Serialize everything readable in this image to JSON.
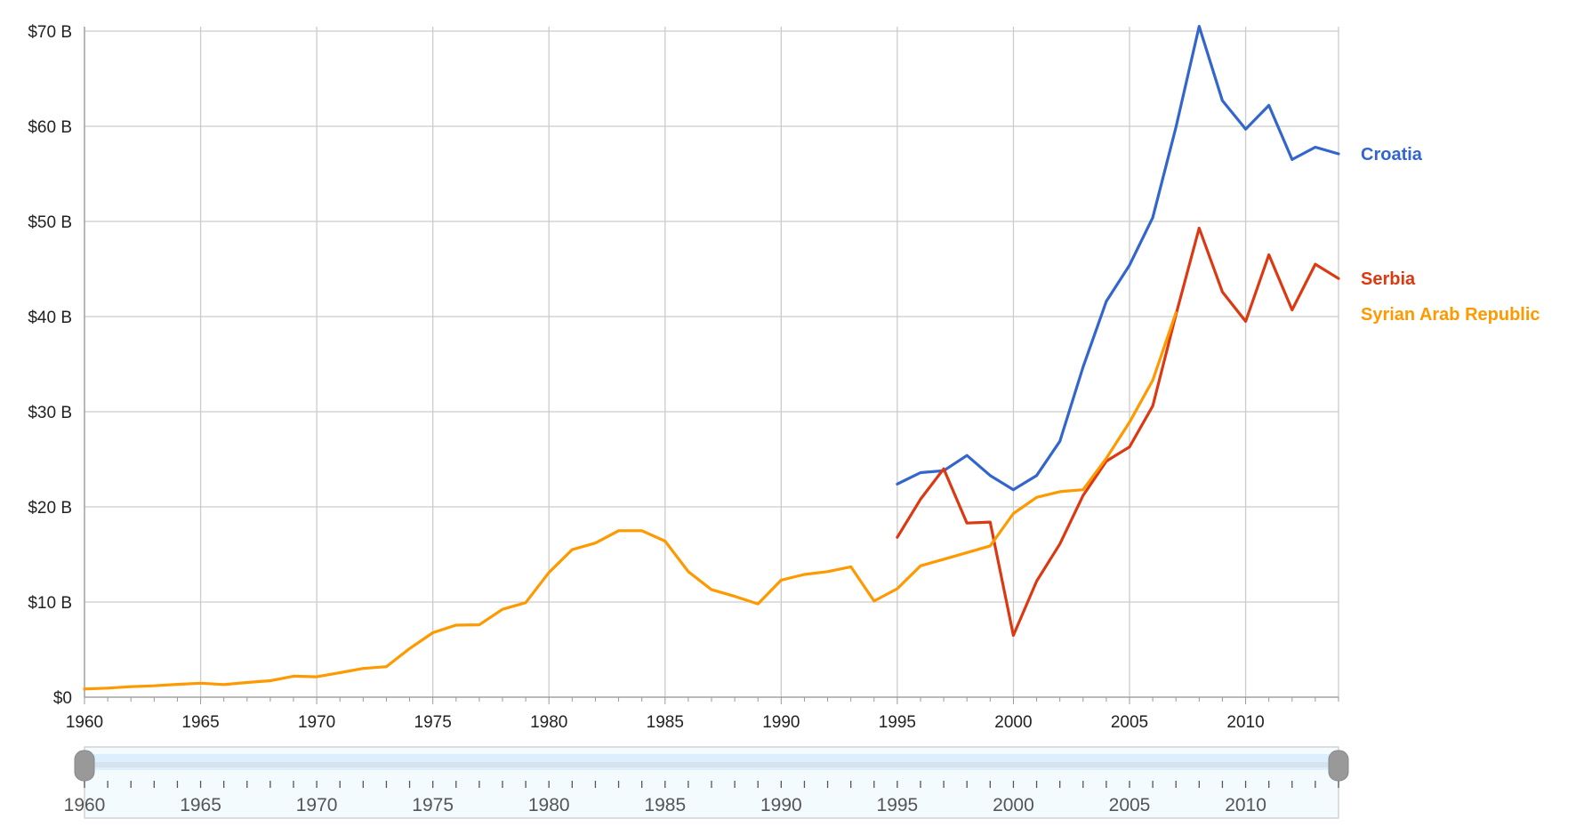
{
  "chart_data": {
    "type": "line",
    "x": [
      1960,
      1961,
      1962,
      1963,
      1964,
      1965,
      1966,
      1967,
      1968,
      1969,
      1970,
      1971,
      1972,
      1973,
      1974,
      1975,
      1976,
      1977,
      1978,
      1979,
      1980,
      1981,
      1982,
      1983,
      1984,
      1985,
      1986,
      1987,
      1988,
      1989,
      1990,
      1991,
      1992,
      1993,
      1994,
      1995,
      1996,
      1997,
      1998,
      1999,
      2000,
      2001,
      2002,
      2003,
      2004,
      2005,
      2006,
      2007,
      2008,
      2009,
      2010,
      2011,
      2012,
      2013,
      2014
    ],
    "series": [
      {
        "name": "Croatia",
        "color": "#3366cc",
        "values": [
          null,
          null,
          null,
          null,
          null,
          null,
          null,
          null,
          null,
          null,
          null,
          null,
          null,
          null,
          null,
          null,
          null,
          null,
          null,
          null,
          null,
          null,
          null,
          null,
          null,
          null,
          null,
          null,
          null,
          null,
          null,
          null,
          null,
          null,
          null,
          22.4,
          23.6,
          23.8,
          25.4,
          23.3,
          21.8,
          23.3,
          26.9,
          34.7,
          41.6,
          45.4,
          50.4,
          59.9,
          70.5,
          62.7,
          59.7,
          62.2,
          56.5,
          57.8,
          57.1
        ]
      },
      {
        "name": "Serbia",
        "color": "#dc3912",
        "values": [
          null,
          null,
          null,
          null,
          null,
          null,
          null,
          null,
          null,
          null,
          null,
          null,
          null,
          null,
          null,
          null,
          null,
          null,
          null,
          null,
          null,
          null,
          null,
          null,
          null,
          null,
          null,
          null,
          null,
          null,
          null,
          null,
          null,
          null,
          null,
          16.8,
          20.8,
          24.0,
          18.3,
          18.4,
          6.5,
          12.2,
          16.1,
          21.2,
          24.8,
          26.3,
          30.6,
          40.2,
          49.3,
          42.6,
          39.5,
          46.5,
          40.7,
          45.5,
          44.0
        ]
      },
      {
        "name": "Syrian Arab Republic",
        "color": "#ff9900",
        "values": [
          0.86,
          0.95,
          1.1,
          1.2,
          1.35,
          1.47,
          1.33,
          1.54,
          1.73,
          2.21,
          2.14,
          2.57,
          3.02,
          3.21,
          5.11,
          6.78,
          7.57,
          7.61,
          9.23,
          9.93,
          13.1,
          15.5,
          16.2,
          17.5,
          17.5,
          16.4,
          13.2,
          11.3,
          10.6,
          9.8,
          12.3,
          12.9,
          13.2,
          13.7,
          10.1,
          11.4,
          13.8,
          14.5,
          15.2,
          15.9,
          19.3,
          21.0,
          21.6,
          21.8,
          25.1,
          28.9,
          33.3,
          40.4,
          null,
          null,
          null,
          null,
          null,
          null,
          null
        ]
      }
    ],
    "yticks": [
      "$0",
      "$10 B",
      "$20 B",
      "$30 B",
      "$40 B",
      "$50 B",
      "$60 B",
      "$70 B"
    ],
    "ylim": [
      0,
      70
    ],
    "xticks": [
      "1960",
      "1965",
      "1970",
      "1975",
      "1980",
      "1985",
      "1990",
      "1995",
      "2000",
      "2005",
      "2010"
    ],
    "xlim": [
      1960,
      2014
    ],
    "grid": true,
    "legend": "right (inline labels)",
    "range_control": {
      "ticks": [
        "1960",
        "1965",
        "1970",
        "1975",
        "1980",
        "1985",
        "1990",
        "1995",
        "2000",
        "2005",
        "2010"
      ]
    }
  }
}
